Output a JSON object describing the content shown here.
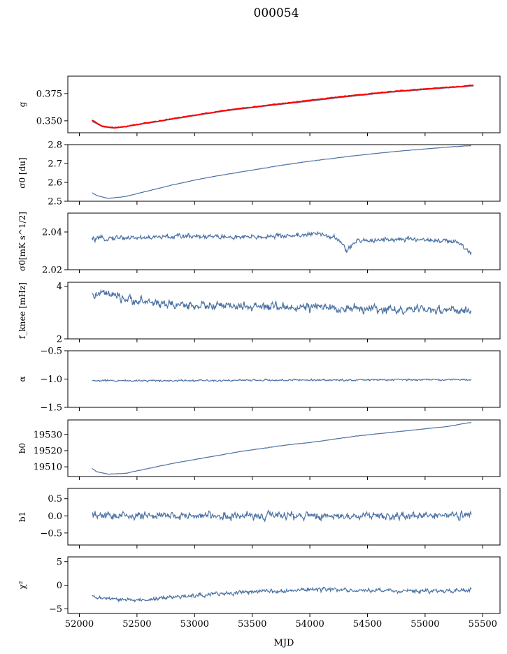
{
  "figure": {
    "suptitle": "000054",
    "xlabel": "MJD"
  },
  "colors": {
    "series": "#4c72a4",
    "overlay": "#ff0000"
  },
  "chart_data": [
    {
      "type": "line",
      "ylabel": "g",
      "xlim": [
        51900,
        55650
      ],
      "ylim": [
        0.339,
        0.391
      ],
      "yticks": [
        0.35,
        0.375
      ],
      "ytick_labels": [
        "0.350",
        "0.375"
      ],
      "x": [
        52110,
        52200,
        52300,
        52400,
        52500,
        52700,
        52900,
        53100,
        53300,
        53500,
        53700,
        53900,
        54100,
        54300,
        54500,
        54700,
        54900,
        55100,
        55300,
        55420
      ],
      "series": [
        {
          "values": [
            0.3495,
            0.3445,
            0.3432,
            0.3443,
            0.3462,
            0.3495,
            0.353,
            0.3563,
            0.3595,
            0.362,
            0.3645,
            0.3668,
            0.3693,
            0.3718,
            0.374,
            0.3762,
            0.3778,
            0.3795,
            0.381,
            0.382
          ]
        },
        {
          "values": [
            0.3505,
            0.345,
            0.3435,
            0.3446,
            0.3466,
            0.3499,
            0.3535,
            0.3568,
            0.36,
            0.3626,
            0.3651,
            0.3675,
            0.37,
            0.3725,
            0.3746,
            0.3767,
            0.3784,
            0.38,
            0.3815,
            0.3826
          ]
        }
      ],
      "noise": [
        0.0003,
        0.0007
      ]
    },
    {
      "type": "line",
      "ylabel": "σ0 [du]",
      "xlim": [
        51900,
        55650
      ],
      "ylim": [
        2.5,
        2.8
      ],
      "yticks": [
        2.5,
        2.6,
        2.7,
        2.8
      ],
      "ytick_labels": [
        "2.5",
        "2.6",
        "2.7",
        "2.8"
      ],
      "x": [
        52110,
        52150,
        52250,
        52400,
        52600,
        52800,
        53000,
        53200,
        53400,
        53600,
        53800,
        54000,
        54200,
        54400,
        54600,
        54800,
        55000,
        55200,
        55400
      ],
      "series": [
        {
          "values": [
            2.545,
            2.53,
            2.515,
            2.525,
            2.555,
            2.585,
            2.612,
            2.635,
            2.655,
            2.675,
            2.695,
            2.712,
            2.727,
            2.742,
            2.755,
            2.767,
            2.777,
            2.787,
            2.795
          ]
        }
      ],
      "noise": [
        0.002
      ]
    },
    {
      "type": "line",
      "ylabel": "σ0[mK s^1/2]",
      "xlim": [
        51900,
        55650
      ],
      "ylim": [
        2.02,
        2.05
      ],
      "yticks": [
        2.02,
        2.04
      ],
      "ytick_labels": [
        "2.02",
        "2.04"
      ],
      "x": [
        52110,
        52300,
        52600,
        53000,
        53400,
        53800,
        54100,
        54250,
        54320,
        54400,
        54600,
        55000,
        55200,
        55300,
        55350,
        55400
      ],
      "series": [
        {
          "values": [
            2.036,
            2.037,
            2.037,
            2.038,
            2.037,
            2.038,
            2.039,
            2.036,
            2.03,
            2.035,
            2.036,
            2.036,
            2.035,
            2.034,
            2.031,
            2.029
          ]
        }
      ],
      "noise": [
        0.0028
      ]
    },
    {
      "type": "line",
      "ylabel": "f_knee [mHz]",
      "xlim": [
        51900,
        55650
      ],
      "ylim": [
        2,
        4.15
      ],
      "yticks": [
        2,
        4
      ],
      "ytick_labels": [
        "2",
        "4"
      ],
      "x": [
        52110,
        52200,
        52400,
        52800,
        53200,
        53600,
        54000,
        54400,
        54800,
        55200,
        55400
      ],
      "series": [
        {
          "values": [
            3.6,
            3.75,
            3.5,
            3.3,
            3.25,
            3.2,
            3.2,
            3.15,
            3.1,
            3.1,
            3.05
          ]
        }
      ],
      "noise": [
        0.35
      ]
    },
    {
      "type": "line",
      "ylabel": "α",
      "xlim": [
        51900,
        55650
      ],
      "ylim": [
        -1.5,
        -0.5
      ],
      "yticks": [
        -1.5,
        -1.0,
        -0.5
      ],
      "ytick_labels": [
        "−1.5",
        "−1.0",
        "−0.5"
      ],
      "x": [
        52110,
        55400
      ],
      "series": [
        {
          "values": [
            -1.03,
            -1.01
          ]
        }
      ],
      "noise": [
        0.035
      ]
    },
    {
      "type": "line",
      "ylabel": "b0",
      "xlim": [
        51900,
        55650
      ],
      "ylim": [
        19504,
        19539
      ],
      "yticks": [
        19510,
        19520,
        19530
      ],
      "ytick_labels": [
        "19510",
        "19520",
        "19530"
      ],
      "x": [
        52110,
        52150,
        52250,
        52400,
        52600,
        52800,
        53000,
        53200,
        53400,
        53600,
        53800,
        54000,
        54200,
        54400,
        54600,
        54800,
        55000,
        55200,
        55400
      ],
      "series": [
        {
          "values": [
            19509,
            19507,
            19505.5,
            19506,
            19509,
            19512,
            19514.5,
            19517,
            19519.5,
            19521.5,
            19523.5,
            19525,
            19527,
            19529,
            19530.5,
            19532,
            19533.5,
            19535,
            19537.5
          ]
        }
      ],
      "noise": [
        0.25
      ]
    },
    {
      "type": "line",
      "ylabel": "b1",
      "xlim": [
        51900,
        55650
      ],
      "ylim": [
        -0.85,
        0.8
      ],
      "yticks": [
        -0.5,
        0.0,
        0.5
      ],
      "ytick_labels": [
        "−0.5",
        "0.0",
        "0.5"
      ],
      "x": [
        52110,
        55400
      ],
      "series": [
        {
          "values": [
            0.0,
            0.0
          ]
        }
      ],
      "noise": [
        0.25
      ]
    },
    {
      "type": "line",
      "ylabel": "χ²",
      "xlim": [
        51900,
        55650
      ],
      "ylim": [
        -6,
        6
      ],
      "yticks": [
        -5,
        0,
        5
      ],
      "ytick_labels": [
        "−5",
        "0",
        "5"
      ],
      "x": [
        52110,
        52300,
        52500,
        52800,
        53200,
        53600,
        54000,
        54400,
        54800,
        55200,
        55400
      ],
      "series": [
        {
          "values": [
            -2.5,
            -3.0,
            -3.2,
            -2.6,
            -1.8,
            -1.3,
            -0.9,
            -1.1,
            -1.2,
            -1.3,
            -1.0
          ]
        }
      ],
      "noise": [
        0.9
      ]
    }
  ],
  "shared_x_axis": {
    "ticks": [
      52000,
      52500,
      53000,
      53500,
      54000,
      54500,
      55000,
      55500
    ],
    "tick_labels": [
      "52000",
      "52500",
      "53000",
      "53500",
      "54000",
      "54500",
      "55000",
      "55500"
    ]
  }
}
